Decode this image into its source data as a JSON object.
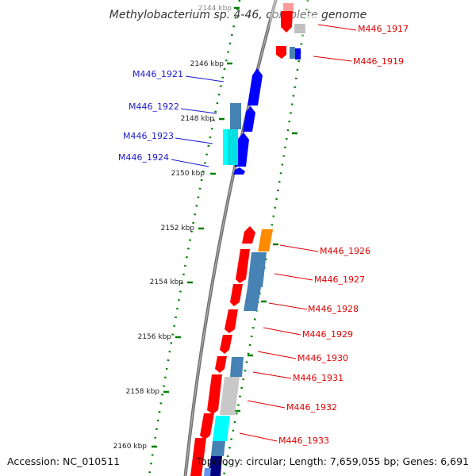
{
  "title": "Methylobacterium sp. 4-46, complete genome",
  "accession_label": "Accession: NC_010511",
  "topology_label": "Topology: circular; Length: 7,659,055 bp; Genes: 6,691",
  "colors": {
    "forward": "#0000ff",
    "reverse": "#ff0000",
    "steelblue": "#4682b4",
    "cyan": "#00ffff",
    "gray": "#c0c0c0",
    "orange": "#ff8c00",
    "navy": "#000080",
    "tick": "#008000",
    "label_left": "#1a1acc",
    "label_right": "#e00000",
    "backbone": "#808080"
  },
  "kbp_ticks": [
    "2144 kbp",
    "2146 kbp",
    "2148 kbp",
    "2150 kbp",
    "2152 kbp",
    "2154 kbp",
    "2156 kbp",
    "2158 kbp",
    "2160 kbp"
  ],
  "left_gene_labels": [
    "M446_1921",
    "M446_1922",
    "M446_1923",
    "M446_1924"
  ],
  "right_gene_labels": [
    "M446_1917",
    "M446_1919",
    "M446_1926",
    "M446_1927",
    "M446_1928",
    "M446_1929",
    "M446_1930",
    "M446_1931",
    "M446_1932",
    "M446_1933"
  ]
}
